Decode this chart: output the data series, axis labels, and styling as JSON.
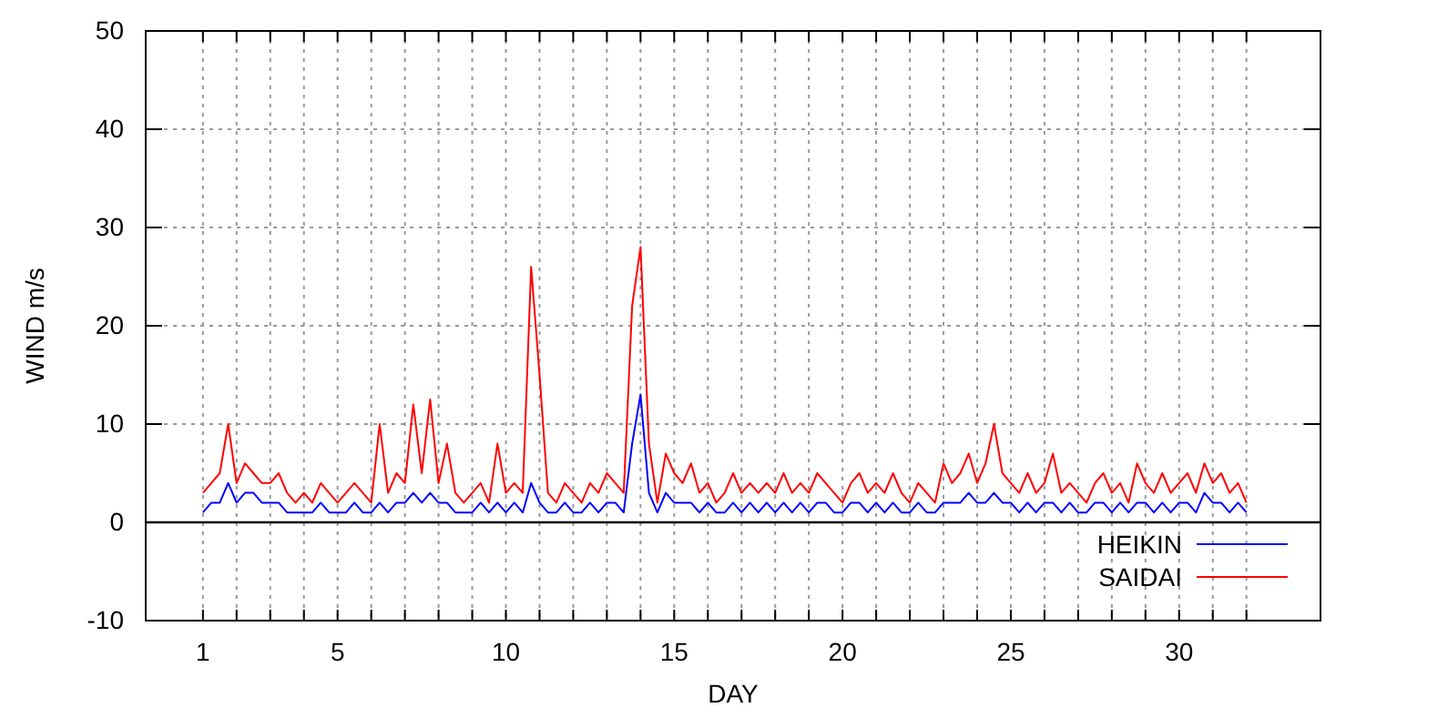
{
  "chart_data": {
    "type": "line",
    "xlabel": "DAY",
    "ylabel": "WIND m/s",
    "x": [
      1,
      1.25,
      1.5,
      1.75,
      2,
      2.25,
      2.5,
      2.75,
      3,
      3.25,
      3.5,
      3.75,
      4,
      4.25,
      4.5,
      4.75,
      5,
      5.25,
      5.5,
      5.75,
      6,
      6.25,
      6.5,
      6.75,
      7,
      7.25,
      7.5,
      7.75,
      8,
      8.25,
      8.5,
      8.75,
      9,
      9.25,
      9.5,
      9.75,
      10,
      10.25,
      10.5,
      10.75,
      11,
      11.25,
      11.5,
      11.75,
      12,
      12.25,
      12.5,
      12.75,
      13,
      13.25,
      13.5,
      13.75,
      14,
      14.25,
      14.5,
      14.75,
      15,
      15.25,
      15.5,
      15.75,
      16,
      16.25,
      16.5,
      16.75,
      17,
      17.25,
      17.5,
      17.75,
      18,
      18.25,
      18.5,
      18.75,
      19,
      19.25,
      19.5,
      19.75,
      20,
      20.25,
      20.5,
      20.75,
      21,
      21.25,
      21.5,
      21.75,
      22,
      22.25,
      22.5,
      22.75,
      23,
      23.25,
      23.5,
      23.75,
      24,
      24.25,
      24.5,
      24.75,
      25,
      25.25,
      25.5,
      25.75,
      26,
      26.25,
      26.5,
      26.75,
      27,
      27.25,
      27.5,
      27.75,
      28,
      28.25,
      28.5,
      28.75,
      29,
      29.25,
      29.5,
      29.75,
      30,
      30.25,
      30.5,
      30.75,
      31,
      31.25,
      31.5,
      31.75,
      32
    ],
    "series": [
      {
        "name": "HEIKIN",
        "color": "#0000ff",
        "values": [
          1,
          2,
          2,
          4,
          2,
          3,
          3,
          2,
          2,
          2,
          1,
          1,
          1,
          1,
          2,
          1,
          1,
          1,
          2,
          1,
          1,
          2,
          1,
          2,
          2,
          3,
          2,
          3,
          2,
          2,
          1,
          1,
          1,
          2,
          1,
          2,
          1,
          2,
          1,
          4,
          2,
          1,
          1,
          2,
          1,
          1,
          2,
          1,
          2,
          2,
          1,
          8,
          13,
          3,
          1,
          3,
          2,
          2,
          2,
          1,
          2,
          1,
          1,
          2,
          1,
          2,
          1,
          2,
          1,
          2,
          1,
          2,
          1,
          2,
          2,
          1,
          1,
          2,
          2,
          1,
          2,
          1,
          2,
          1,
          1,
          2,
          1,
          1,
          2,
          2,
          2,
          3,
          2,
          2,
          3,
          2,
          2,
          1,
          2,
          1,
          2,
          2,
          1,
          2,
          1,
          1,
          2,
          2,
          1,
          2,
          1,
          2,
          2,
          1,
          2,
          1,
          2,
          2,
          1,
          3,
          2,
          2,
          1,
          2,
          1
        ]
      },
      {
        "name": "SAIDAI",
        "color": "#ff0000",
        "values": [
          3,
          4,
          5,
          10,
          4,
          6,
          5,
          4,
          4,
          5,
          3,
          2,
          3,
          2,
          4,
          3,
          2,
          3,
          4,
          3,
          2,
          10,
          3,
          5,
          4,
          12,
          5,
          12.5,
          4,
          8,
          3,
          2,
          3,
          4,
          2,
          8,
          3,
          4,
          3,
          26,
          15,
          3,
          2,
          4,
          3,
          2,
          4,
          3,
          5,
          4,
          3,
          22,
          28,
          8,
          2,
          7,
          5,
          4,
          6,
          3,
          4,
          2,
          3,
          5,
          3,
          4,
          3,
          4,
          3,
          5,
          3,
          4,
          3,
          5,
          4,
          3,
          2,
          4,
          5,
          3,
          4,
          3,
          5,
          3,
          2,
          4,
          3,
          2,
          6,
          4,
          5,
          7,
          4,
          6,
          10,
          5,
          4,
          3,
          5,
          3,
          4,
          7,
          3,
          4,
          3,
          2,
          4,
          5,
          3,
          4,
          2,
          6,
          4,
          3,
          5,
          3,
          4,
          5,
          3,
          6,
          4,
          5,
          3,
          4,
          2
        ]
      }
    ],
    "xlim": [
      -0.7,
      34.2
    ],
    "xticks": [
      1,
      {
        "value": 2,
        "label": null
      },
      {
        "value": 3,
        "label": null
      },
      {
        "value": 4,
        "label": null
      },
      5,
      {
        "value": 6,
        "label": null
      },
      {
        "value": 7,
        "label": null
      },
      {
        "value": 8,
        "label": null
      },
      {
        "value": 9,
        "label": null
      },
      10,
      {
        "value": 11,
        "label": null
      },
      {
        "value": 12,
        "label": null
      },
      {
        "value": 13,
        "label": null
      },
      {
        "value": 14,
        "label": null
      },
      15,
      {
        "value": 16,
        "label": null
      },
      {
        "value": 17,
        "label": null
      },
      {
        "value": 18,
        "label": null
      },
      {
        "value": 19,
        "label": null
      },
      20,
      {
        "value": 21,
        "label": null
      },
      {
        "value": 22,
        "label": null
      },
      {
        "value": 23,
        "label": null
      },
      {
        "value": 24,
        "label": null
      },
      25,
      {
        "value": 26,
        "label": null
      },
      {
        "value": 27,
        "label": null
      },
      {
        "value": 28,
        "label": null
      },
      {
        "value": 29,
        "label": null
      },
      30,
      {
        "value": 31,
        "label": null
      },
      {
        "value": 32,
        "label": null
      }
    ],
    "ylim": [
      -10,
      50
    ],
    "yticks": [
      -10,
      0,
      10,
      20,
      30,
      40,
      50
    ],
    "ref_lines": [
      {
        "axis": "y",
        "value": 0,
        "color": "#000000"
      }
    ],
    "grid": true,
    "legend": "bottom right",
    "marker": "none",
    "line_style": "solid"
  }
}
